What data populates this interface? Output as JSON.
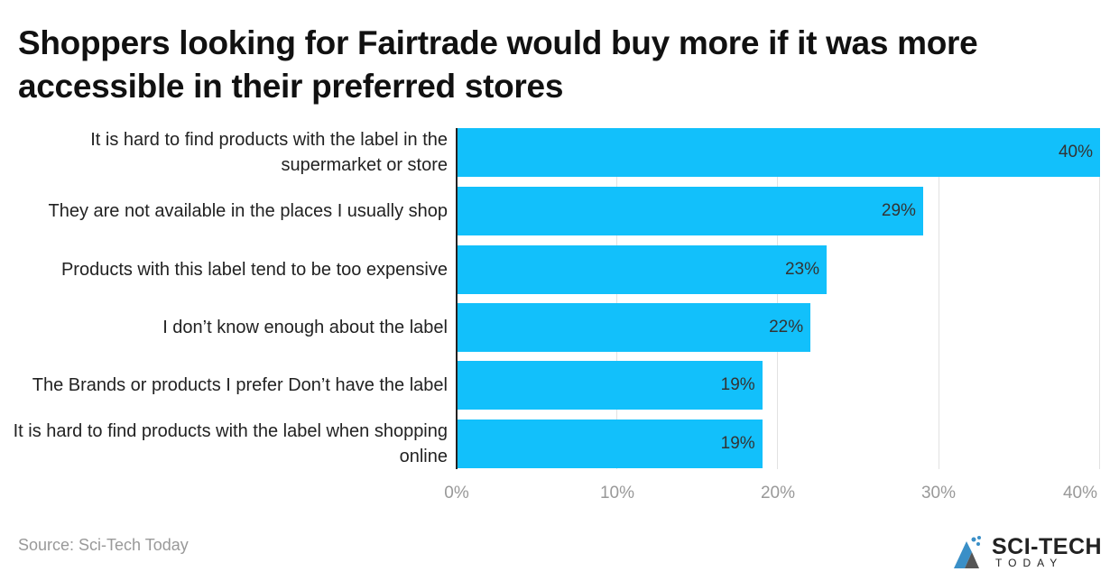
{
  "title": "Shoppers looking for Fairtrade would buy more if it was more accessible in their preferred stores",
  "source": "Source: Sci-Tech Today",
  "logo": {
    "main": "SCI-TECH",
    "sub": "TODAY"
  },
  "colors": {
    "bar": "#12c0fb",
    "grid": "#e2e2e2",
    "axis_text": "#999999"
  },
  "chart_data": {
    "type": "bar",
    "orientation": "horizontal",
    "title": "Shoppers looking for Fairtrade would buy more if it was more accessible in their preferred stores",
    "categories": [
      "It is hard to find products with the label in the supermarket or store",
      "They are not available in the places I usually shop",
      "Products with this label tend to be too expensive",
      "I don’t know enough about the label",
      "The Brands or products I prefer Don’t have the label",
      "It is hard to find products with the label when shopping online"
    ],
    "values": [
      40,
      29,
      23,
      22,
      19,
      19
    ],
    "value_labels": [
      "40%",
      "29%",
      "23%",
      "22%",
      "19%",
      "19%"
    ],
    "xlabel": "",
    "ylabel": "",
    "xlim": [
      0,
      40
    ],
    "x_ticks": [
      "0%",
      "10%",
      "20%",
      "30%",
      "40%"
    ],
    "grid": true,
    "legend": null
  }
}
